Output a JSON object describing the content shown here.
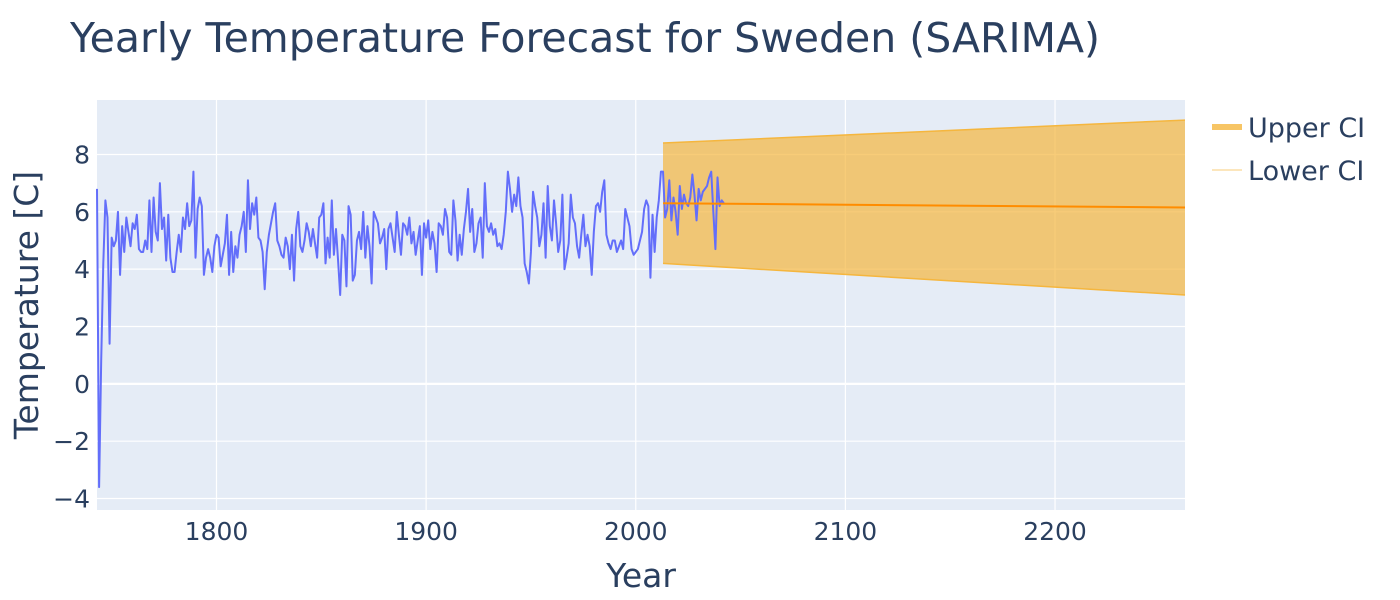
{
  "chart_data": {
    "type": "line",
    "title": "Yearly Temperature Forecast for Sweden (SARIMA)",
    "xlabel": "Year",
    "ylabel": "Temperature [C]",
    "xlim": [
      1743,
      2262
    ],
    "ylim": [
      -4.4,
      9.9
    ],
    "x_ticks": [
      1800,
      1900,
      2000,
      2100,
      2200
    ],
    "y_ticks": [
      -4,
      -2,
      0,
      2,
      4,
      6,
      8
    ],
    "grid": true,
    "legend_position": "top-right",
    "colors": {
      "plot_bg": "#e5ecf6",
      "observed": "#636efa",
      "forecast": "#ff8c00",
      "ci_fill": "#f5b63e",
      "text": "#2a3f5f"
    },
    "observed": {
      "x_start": 1743,
      "y": [
        6.8,
        -3.6,
        0.8,
        4.2,
        6.4,
        5.8,
        1.4,
        5.1,
        4.8,
        5.0,
        6.0,
        3.8,
        5.5,
        4.6,
        5.8,
        5.3,
        4.8,
        5.6,
        5.4,
        5.9,
        4.7,
        4.6,
        4.6,
        5.0,
        4.7,
        6.4,
        4.6,
        6.5,
        5.3,
        5.0,
        7.0,
        5.4,
        5.8,
        4.3,
        5.9,
        4.4,
        3.9,
        3.9,
        4.6,
        5.2,
        4.6,
        5.8,
        5.4,
        6.3,
        5.5,
        5.7,
        7.4,
        4.4,
        6.1,
        6.5,
        6.2,
        3.8,
        4.4,
        4.7,
        4.4,
        3.9,
        4.8,
        5.2,
        5.1,
        4.1,
        4.5,
        4.9,
        5.9,
        3.8,
        5.3,
        3.9,
        4.8,
        4.4,
        5.2,
        5.5,
        6.0,
        4.6,
        7.1,
        5.4,
        6.3,
        5.9,
        6.5,
        5.1,
        5.0,
        4.6,
        3.3,
        4.6,
        5.2,
        5.6,
        6.0,
        6.3,
        5.0,
        4.8,
        4.5,
        4.4,
        5.1,
        4.8,
        4.0,
        5.2,
        3.6,
        5.4,
        6.0,
        4.8,
        4.6,
        5.0,
        5.6,
        5.3,
        4.8,
        5.4,
        4.9,
        4.4,
        5.8,
        5.9,
        6.3,
        4.2,
        5.1,
        4.4,
        6.4,
        4.5,
        5.4,
        4.3,
        3.1,
        5.2,
        5.0,
        3.4,
        6.2,
        5.9,
        3.6,
        3.8,
        5.0,
        5.3,
        4.7,
        6.0,
        4.4,
        5.5,
        4.8,
        3.5,
        6.0,
        5.8,
        5.6,
        4.9,
        5.1,
        5.4,
        4.0,
        5.4,
        5.6,
        5.1,
        4.6,
        6.0,
        5.2,
        4.5,
        5.6,
        5.5,
        5.2,
        5.8,
        4.9,
        5.3,
        4.5,
        5.0,
        5.5,
        3.8,
        5.6,
        5.1,
        5.7,
        4.7,
        5.3,
        4.9,
        3.9,
        5.6,
        5.5,
        5.2,
        6.1,
        5.8,
        4.6,
        4.5,
        6.4,
        5.7,
        4.3,
        5.2,
        4.5,
        5.4,
        6.0,
        6.8,
        5.3,
        6.1,
        4.6,
        4.9,
        5.6,
        5.8,
        4.4,
        7.0,
        5.5,
        5.3,
        5.6,
        5.2,
        5.4,
        4.8,
        4.9,
        4.7,
        5.2,
        6.0,
        7.4,
        6.8,
        6.0,
        6.6,
        6.2,
        7.2,
        6.2,
        5.8,
        4.2,
        3.9,
        3.5,
        4.6,
        6.7,
        6.2,
        5.8,
        4.8,
        5.2,
        6.3,
        4.4,
        6.9,
        5.5,
        5.0,
        6.4,
        5.6,
        4.6,
        5.0,
        6.6,
        4.0,
        4.4,
        4.9,
        6.6,
        5.8,
        5.6,
        4.8,
        4.4,
        5.2,
        5.9,
        4.8,
        5.2,
        4.8,
        3.8,
        5.3,
        6.2,
        6.3,
        6.0,
        6.7,
        7.1,
        5.2,
        4.9,
        4.7,
        5.0,
        5.0,
        4.6,
        4.8,
        5.0,
        4.7,
        6.1,
        5.8,
        5.5,
        4.7,
        4.5,
        4.6,
        4.7,
        5.0,
        5.3,
        6.1,
        6.4,
        6.2,
        3.7,
        5.9,
        4.6,
        5.8,
        6.4,
        7.4,
        7.4,
        5.8,
        6.1,
        7.1,
        5.7,
        6.5,
        6.0,
        5.2,
        6.9,
        6.1,
        6.6,
        6.3,
        6.2,
        6.5,
        7.3,
        6.6,
        5.7,
        6.8,
        6.4,
        6.7,
        6.8,
        6.9,
        7.2,
        7.4,
        6.0,
        4.7,
        7.2,
        6.2,
        6.4,
        6.3
      ]
    },
    "forecast": {
      "x": [
        2013,
        2262
      ],
      "mean": [
        6.3,
        6.15
      ],
      "upper_ci": [
        8.4,
        9.2
      ],
      "lower_ci": [
        4.2,
        3.1
      ]
    },
    "legend": [
      "Upper CI",
      "Lower CI"
    ]
  }
}
